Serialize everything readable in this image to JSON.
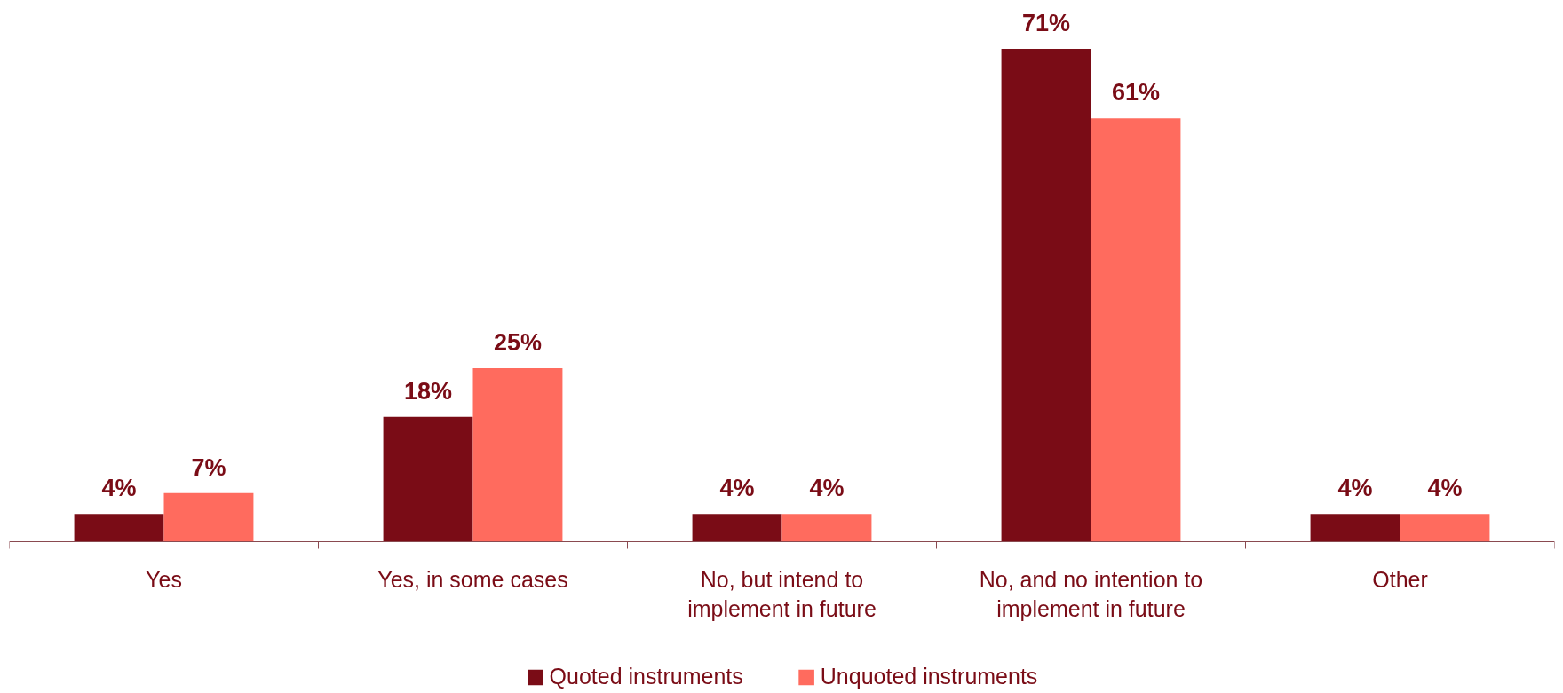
{
  "chart_data": {
    "type": "bar",
    "categories": [
      "Yes",
      "Yes, in some cases",
      "No, but intend to implement in future",
      "No, and no intention to implement in future",
      "Other"
    ],
    "series": [
      {
        "name": "Quoted instruments",
        "color": "#7a0c16",
        "values": [
          4,
          18,
          4,
          71,
          4
        ],
        "value_labels": [
          "4%",
          "18%",
          "4%",
          "71%",
          "4%"
        ]
      },
      {
        "name": "Unquoted instruments",
        "color": "#ff6b5e",
        "values": [
          7,
          25,
          4,
          61,
          4
        ],
        "value_labels": [
          "7%",
          "25%",
          "4%",
          "61%",
          "4%"
        ]
      }
    ],
    "legend": "bottom",
    "grid": false
  }
}
